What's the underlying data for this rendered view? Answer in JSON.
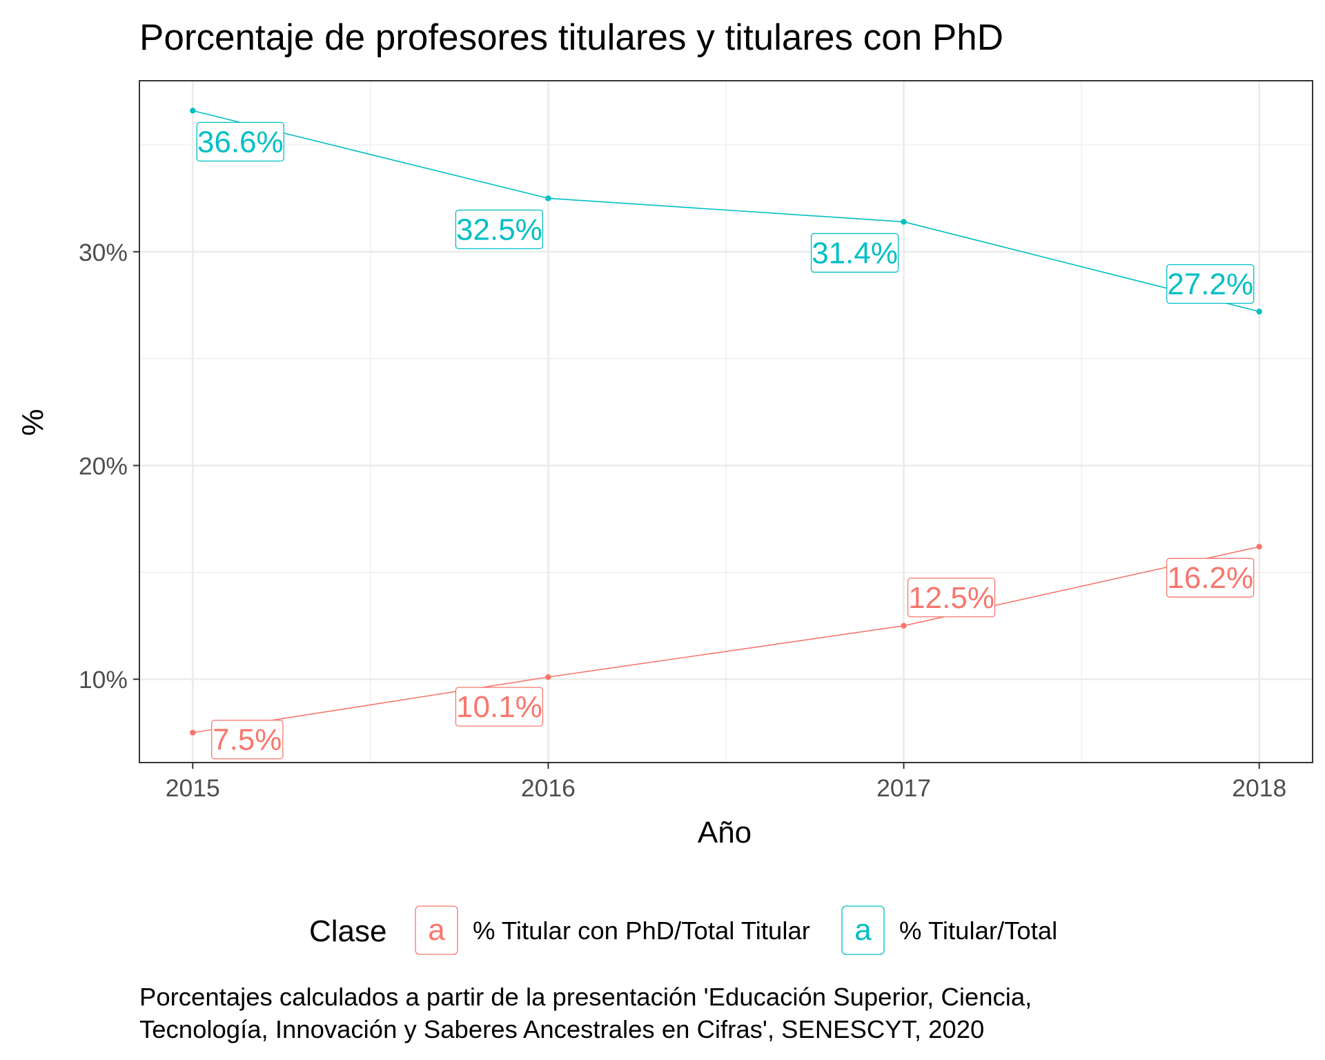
{
  "chart_data": {
    "type": "line",
    "title": "Porcentaje de profesores titulares y titulares con PhD",
    "xlabel": "Año",
    "ylabel": "%",
    "x": [
      2015,
      2016,
      2017,
      2018
    ],
    "x_ticks": [
      "2015",
      "2016",
      "2017",
      "2018"
    ],
    "y_ticks": [
      "10%",
      "20%",
      "30%"
    ],
    "xlim": [
      2014.85,
      2018.15
    ],
    "ylim": [
      6.1,
      38.0
    ],
    "grid": true,
    "legend": {
      "title": "Clase",
      "position": "bottom",
      "key_glyph": "a"
    },
    "series": [
      {
        "name": "% Titular con PhD/Total Titular",
        "color": "#F8766D",
        "values": [
          7.5,
          10.1,
          12.5,
          16.2
        ],
        "labels": [
          "7.5%",
          "10.1%",
          "12.5%",
          "16.2%"
        ]
      },
      {
        "name": "% Titular/Total",
        "color": "#00BFC4",
        "values": [
          36.6,
          32.5,
          31.4,
          27.2
        ],
        "labels": [
          "36.6%",
          "32.5%",
          "31.4%",
          "27.2%"
        ]
      }
    ],
    "caption": [
      "Porcentajes calculados a partir de la presentación 'Educación Superior, Ciencia,",
      "Tecnología, Innovación y Saberes Ancestrales en Cifras', SENESCYT, 2020"
    ]
  }
}
